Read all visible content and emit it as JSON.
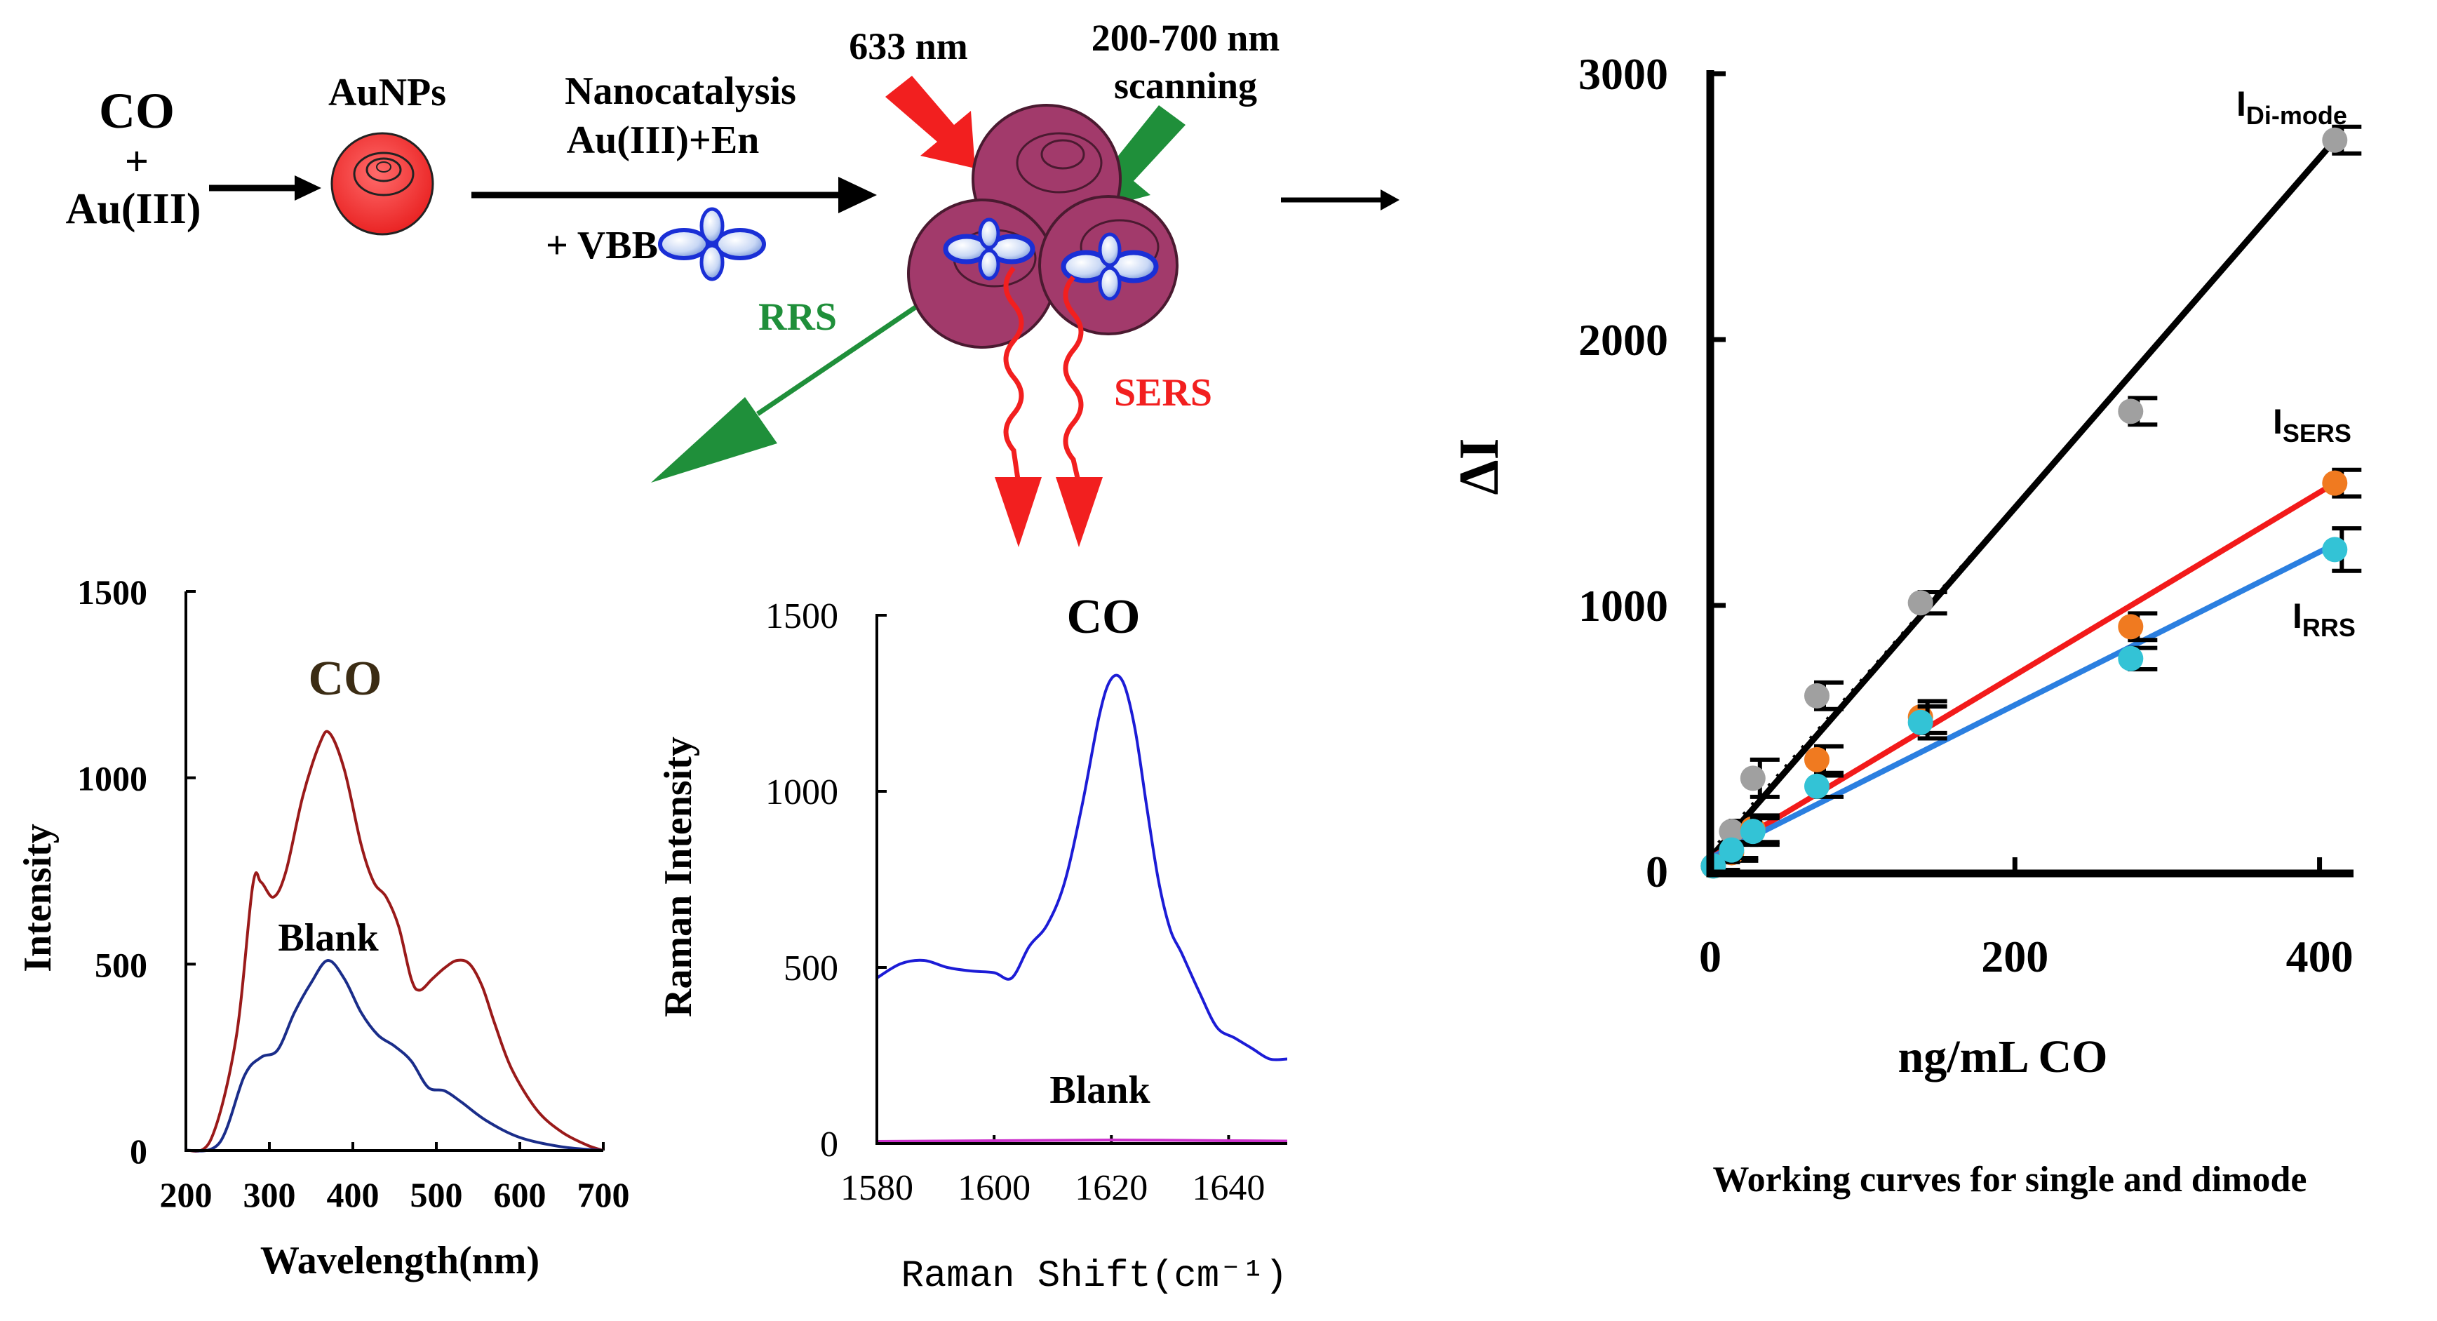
{
  "scheme": {
    "co": "CO",
    "plus": "+",
    "au3": "Au(III)",
    "aunps": "AuNPs",
    "nanocatalysis": "Nanocatalysis",
    "reagents": "Au(III)+En",
    "vbb": "+ VBB",
    "laser": "633 nm",
    "scan_line1": "200-700 nm",
    "scan_line2": "scanning",
    "rrs": "RRS",
    "sers": "SERS"
  },
  "colors": {
    "red": "#f21f1f",
    "green": "#1f8f3a",
    "particle": "#a23a6b",
    "co_curve": "#9a1a1a",
    "blank_curve": "#1a2d8a",
    "sers_curve": "#1c1cd6",
    "sers_blank": "#cc33cc",
    "dimode": "#000000",
    "sers_fit": "#f21a1a",
    "rrs_fit": "#2b7fe0",
    "gray_pt": "#a0a0a0",
    "orange_pt": "#f07a20",
    "cyan_pt": "#33c3d6"
  },
  "chart_data": [
    {
      "type": "line",
      "title": "CO",
      "xlabel": "Wavelength(nm)",
      "ylabel": "Intensity",
      "xlim": [
        200,
        700
      ],
      "ylim": [
        0,
        1500
      ],
      "xticks": [
        200,
        300,
        400,
        500,
        600,
        700
      ],
      "yticks": [
        0,
        500,
        1000,
        1500
      ],
      "annotation": "Blank",
      "series": [
        {
          "name": "CO",
          "x": [
            200,
            230,
            260,
            280,
            290,
            305,
            320,
            340,
            360,
            372,
            390,
            410,
            425,
            440,
            455,
            470,
            480,
            495,
            510,
            525,
            540,
            555,
            570,
            590,
            620,
            650,
            680,
            700
          ],
          "y": [
            0,
            30,
            300,
            710,
            720,
            680,
            750,
            950,
            1090,
            1120,
            1020,
            820,
            720,
            680,
            600,
            460,
            430,
            460,
            490,
            510,
            500,
            440,
            340,
            220,
            110,
            50,
            15,
            0
          ]
        },
        {
          "name": "Blank",
          "x": [
            200,
            240,
            270,
            290,
            310,
            330,
            350,
            370,
            390,
            410,
            430,
            450,
            470,
            490,
            510,
            530,
            560,
            600,
            650,
            700
          ],
          "y": [
            0,
            20,
            200,
            250,
            270,
            370,
            450,
            510,
            460,
            370,
            310,
            280,
            240,
            170,
            160,
            130,
            80,
            35,
            10,
            0
          ]
        }
      ]
    },
    {
      "type": "line",
      "title": "CO",
      "xlabel": "Raman Shift(cm⁻¹)",
      "ylabel": "Raman Intensity",
      "xlim": [
        1580,
        1650
      ],
      "ylim": [
        0,
        1500
      ],
      "xticks": [
        1580,
        1600,
        1620,
        1640
      ],
      "yticks": [
        0,
        500,
        1000,
        1500
      ],
      "annotation": "Blank",
      "series": [
        {
          "name": "CO",
          "x": [
            1580,
            1584,
            1588,
            1592,
            1596,
            1600,
            1603,
            1606,
            1609,
            1612,
            1615,
            1618,
            1620,
            1622,
            1624,
            1626,
            1628,
            1630,
            1632,
            1635,
            1638,
            1641,
            1644,
            1647,
            1650
          ],
          "y": [
            470,
            510,
            520,
            500,
            490,
            485,
            470,
            560,
            620,
            740,
            960,
            1220,
            1320,
            1310,
            1180,
            960,
            750,
            610,
            540,
            430,
            330,
            300,
            270,
            240,
            240
          ]
        },
        {
          "name": "Blank",
          "x": [
            1580,
            1600,
            1620,
            1640,
            1650
          ],
          "y": [
            6,
            8,
            10,
            8,
            7
          ]
        }
      ]
    },
    {
      "type": "scatter",
      "title": "Working curves for single and dimode",
      "xlabel": "ng/mL CO",
      "ylabel": "ΔI",
      "xlim": [
        0,
        420
      ],
      "ylim": [
        0,
        3000
      ],
      "xticks": [
        0,
        200,
        400
      ],
      "yticks": [
        0,
        1000,
        2000,
        3000
      ],
      "series": [
        {
          "name": "I",
          "sub": "Di-mode",
          "x": [
            2,
            14,
            28,
            70,
            138,
            276,
            410
          ],
          "y": [
            20,
            150,
            350,
            660,
            1010,
            1730,
            2750
          ],
          "error": [
            20,
            40,
            70,
            50,
            40,
            50,
            50
          ],
          "fit": [
            [
              0,
              50
            ],
            [
              410,
              2750
            ]
          ]
        },
        {
          "name": "I",
          "sub": "SERS",
          "x": [
            2,
            14,
            28,
            70,
            138,
            276,
            410
          ],
          "y": [
            20,
            70,
            160,
            420,
            580,
            920,
            1460
          ],
          "error": [
            15,
            30,
            50,
            50,
            60,
            50,
            50
          ],
          "fit": [
            [
              0,
              50
            ],
            [
              410,
              1460
            ]
          ]
        },
        {
          "name": "I",
          "sub": "RRS",
          "x": [
            2,
            14,
            28,
            70,
            138,
            276,
            410
          ],
          "y": [
            20,
            80,
            150,
            320,
            560,
            800,
            1210
          ],
          "error": [
            15,
            30,
            50,
            40,
            60,
            40,
            80
          ],
          "fit": [
            [
              0,
              50
            ],
            [
              410,
              1230
            ]
          ]
        }
      ]
    }
  ]
}
